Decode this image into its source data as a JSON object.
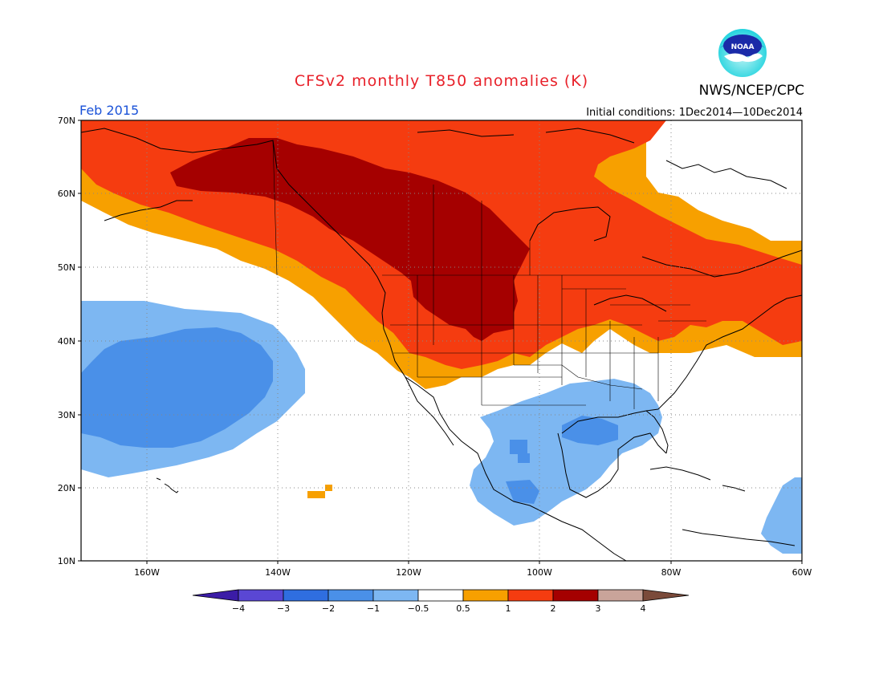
{
  "header": {
    "title": "CFSv2 monthly T850 anomalies (K)",
    "agency": "NWS/NCEP/CPC",
    "month": "Feb 2015",
    "initial_conditions": "Initial conditions: 1Dec2014—10Dec2014",
    "logo_text": "NOAA"
  },
  "map": {
    "lat_labels": [
      "70N",
      "60N",
      "50N",
      "40N",
      "30N",
      "20N",
      "10N"
    ],
    "lon_labels": [
      "160W",
      "140W",
      "120W",
      "100W",
      "80W",
      "60W"
    ]
  },
  "colorbar": {
    "labels": [
      "−4",
      "−3",
      "−2",
      "−1",
      "−0.5",
      "0.5",
      "1",
      "2",
      "3",
      "4"
    ],
    "colors": [
      "#3b1ca6",
      "#5a47d4",
      "#2f6ee0",
      "#4a90e8",
      "#7db7f2",
      "#ffffff",
      "#f7a000",
      "#f53c10",
      "#a50000",
      "#c9a49a",
      "#7a4a3a"
    ]
  },
  "colors": {
    "title": "#e8212a",
    "month": "#1a52d8",
    "dark_red": "#a50000",
    "red": "#f53c10",
    "orange": "#f7a000",
    "light_blue": "#7db7f2",
    "mid_blue": "#4a90e8",
    "strong_blue": "#2f6ee0"
  }
}
